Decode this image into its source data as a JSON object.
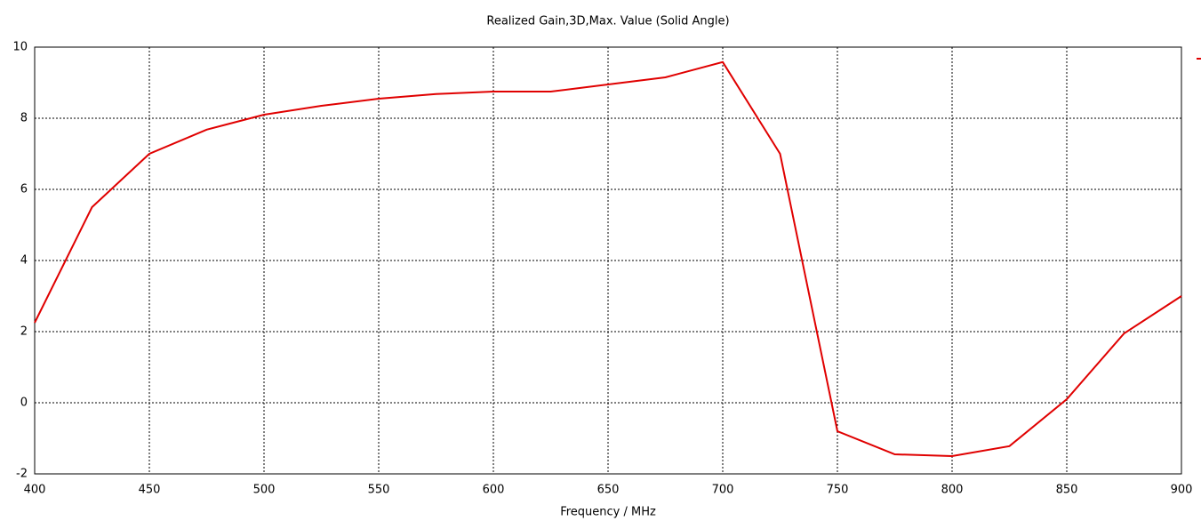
{
  "chart_data": {
    "type": "line",
    "title": "Realized Gain,3D,Max. Value (Solid Angle)",
    "x_label": "Frequency / MHz",
    "x": [
      400,
      425,
      450,
      475,
      500,
      525,
      550,
      575,
      600,
      625,
      650,
      675,
      700,
      725,
      750,
      775,
      800,
      825,
      850,
      875,
      900
    ],
    "series": [
      {
        "color": "#e00000",
        "values": [
          2.25,
          5.5,
          7.0,
          7.68,
          8.1,
          8.35,
          8.55,
          8.68,
          8.75,
          8.75,
          8.95,
          9.15,
          9.58,
          7.0,
          -0.8,
          -1.45,
          -1.5,
          -1.22,
          0.1,
          1.95,
          3.0
        ]
      }
    ],
    "xlim": [
      400,
      900
    ],
    "xticks": [
      400,
      450,
      500,
      550,
      600,
      650,
      700,
      750,
      800,
      850,
      900
    ],
    "ylim": [
      -2,
      10
    ],
    "yticks": [
      -2,
      0,
      2,
      4,
      6,
      8,
      10
    ],
    "grid": true
  }
}
